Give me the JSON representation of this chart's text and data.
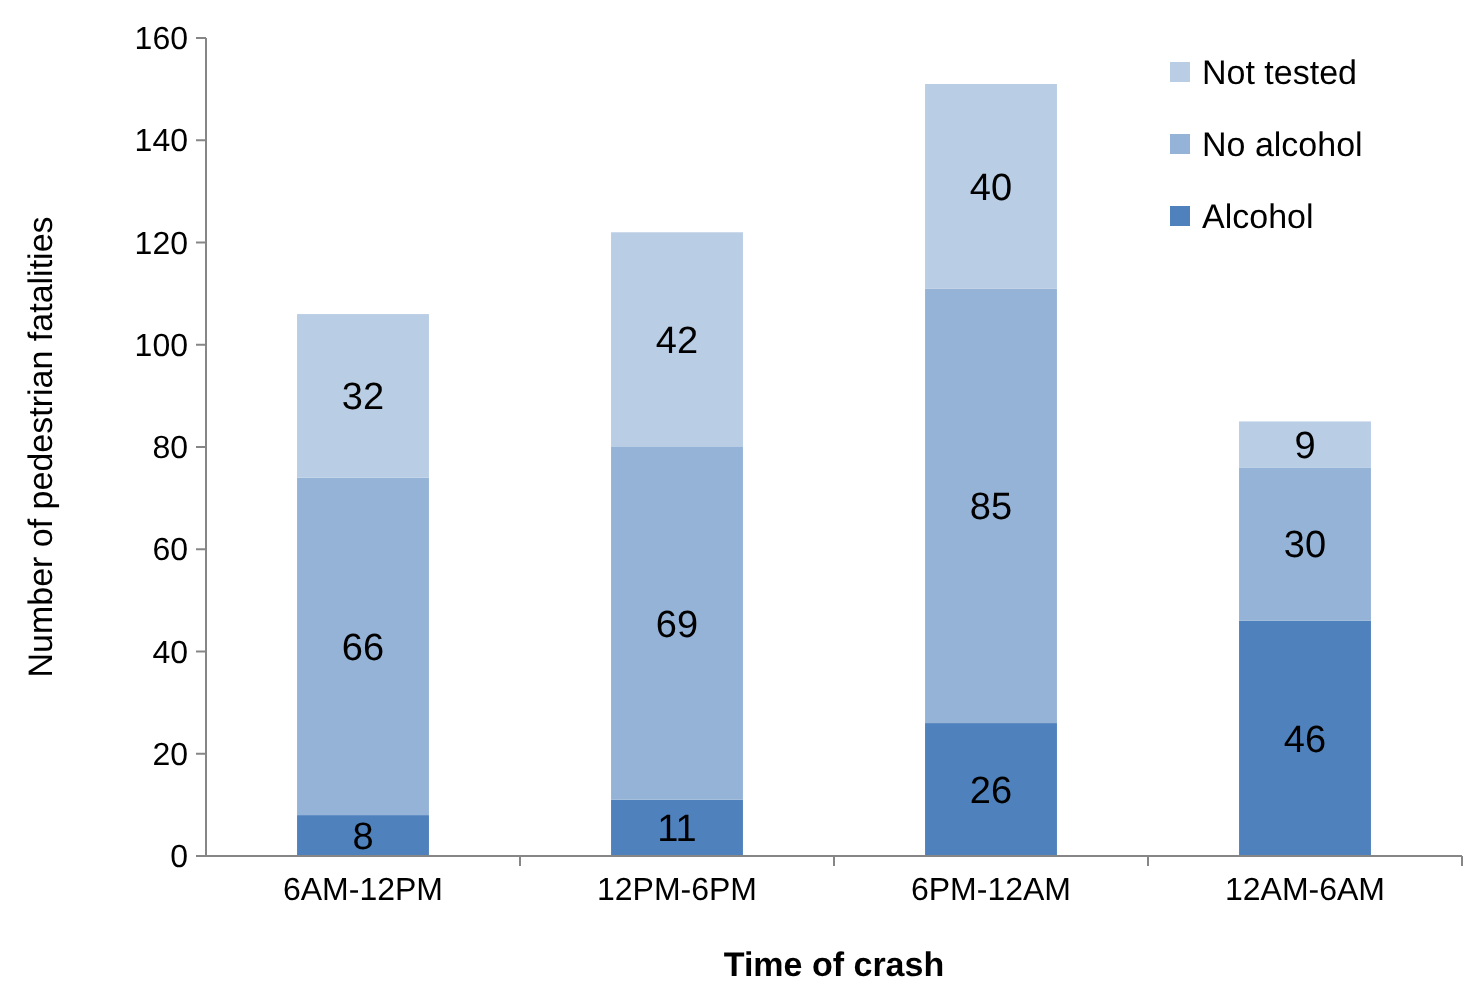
{
  "chart_data": {
    "type": "bar",
    "stacked": true,
    "xlabel": "Time of crash",
    "ylabel": "Number of pedestrian fatalities",
    "categories": [
      "6AM-12PM",
      "12PM-6PM",
      "6PM-12AM",
      "12AM-6AM"
    ],
    "series": [
      {
        "name": "Alcohol",
        "color": "#4f81bd",
        "values": [
          8,
          11,
          26,
          46
        ]
      },
      {
        "name": "No alcohol",
        "color": "#95b3d7",
        "values": [
          66,
          69,
          85,
          30
        ]
      },
      {
        "name": "Not tested",
        "color": "#b9cde5",
        "values": [
          32,
          42,
          40,
          9
        ]
      }
    ],
    "ylim": [
      0,
      160
    ],
    "yticks": [
      0,
      20,
      40,
      60,
      80,
      100,
      120,
      140,
      160
    ],
    "grid": false,
    "legend": "top right",
    "data_labels": true
  }
}
